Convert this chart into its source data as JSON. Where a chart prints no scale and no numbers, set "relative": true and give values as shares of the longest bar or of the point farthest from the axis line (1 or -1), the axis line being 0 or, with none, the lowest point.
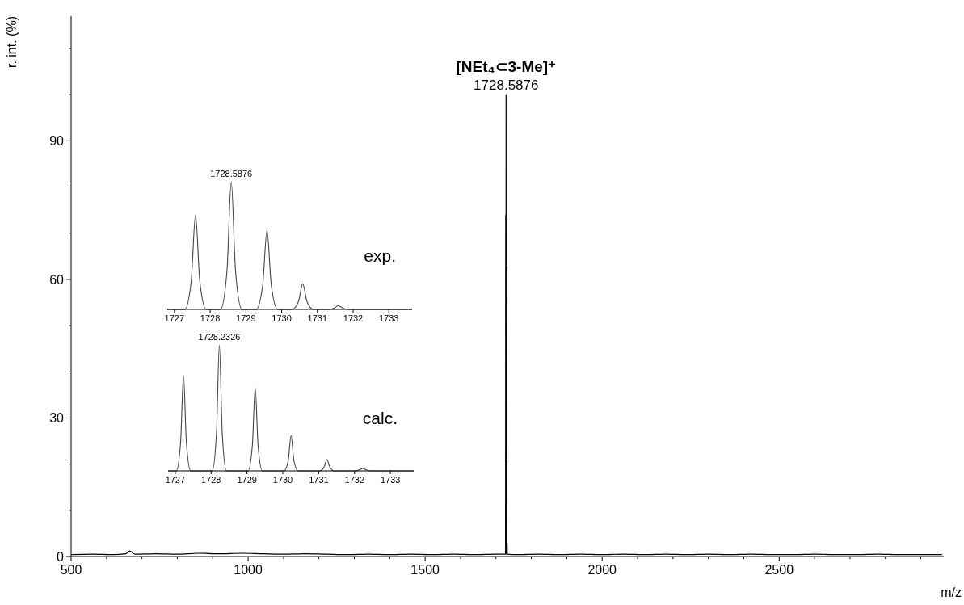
{
  "chart_data": [
    {
      "type": "line",
      "title": "[NEt₄⊂3-Me]⁺",
      "xlabel": "m/z",
      "ylabel": "r. int. (%)",
      "xlim": [
        500,
        2965
      ],
      "ylim": [
        0,
        117
      ],
      "xticks": [
        500,
        {
          "value": 600,
          "label": null
        },
        {
          "value": 700,
          "label": null
        },
        {
          "value": 800,
          "label": null
        },
        {
          "value": 900,
          "label": null
        },
        1000,
        {
          "value": 1100,
          "label": null
        },
        {
          "value": 1200,
          "label": null
        },
        {
          "value": 1300,
          "label": null
        },
        {
          "value": 1400,
          "label": null
        },
        1500,
        {
          "value": 1600,
          "label": null
        },
        {
          "value": 1700,
          "label": null
        },
        {
          "value": 1800,
          "label": null
        },
        {
          "value": 1900,
          "label": null
        },
        2000,
        {
          "value": 2100,
          "label": null
        },
        {
          "value": 2200,
          "label": null
        },
        {
          "value": 2300,
          "label": null
        },
        {
          "value": 2400,
          "label": null
        },
        2500,
        {
          "value": 2600,
          "label": null
        },
        {
          "value": 2700,
          "label": null
        },
        {
          "value": 2800,
          "label": null
        },
        {
          "value": 2900,
          "label": null
        }
      ],
      "yticks": [
        0,
        {
          "value": 10,
          "label": null
        },
        {
          "value": 20,
          "label": null
        },
        30,
        {
          "value": 40,
          "label": null
        },
        {
          "value": 50,
          "label": null
        },
        60,
        {
          "value": 70,
          "label": null
        },
        {
          "value": 80,
          "label": null
        },
        90,
        {
          "value": 100,
          "label": null
        },
        {
          "value": 110,
          "label": null
        }
      ],
      "annotations": [
        "1728.5876"
      ],
      "series": [
        {
          "color": "#000000",
          "x": [
            500,
            560,
            620,
            655,
            665,
            680,
            740,
            800,
            860,
            920,
            980,
            1040,
            1100,
            1160,
            1220,
            1280,
            1340,
            1400,
            1460,
            1520,
            1580,
            1640,
            1700,
            1727.1,
            1727.6,
            1728.1,
            1728.6,
            1729.1,
            1729.6,
            1730.1,
            1730.6,
            1731.1,
            1731.6,
            1732.1,
            1760,
            1820,
            1880,
            1940,
            2000,
            2060,
            2120,
            2180,
            2240,
            2300,
            2360,
            2420,
            2480,
            2540,
            2600,
            2660,
            2720,
            2780,
            2840,
            2900,
            2960
          ],
          "values": [
            0.4,
            0.5,
            0.4,
            0.6,
            1.2,
            0.5,
            0.6,
            0.5,
            0.7,
            0.6,
            0.7,
            0.6,
            0.5,
            0.6,
            0.5,
            0.4,
            0.5,
            0.4,
            0.5,
            0.4,
            0.5,
            0.4,
            0.5,
            0.5,
            74,
            0.5,
            100,
            0.5,
            63,
            0.5,
            21,
            0.5,
            3,
            0.5,
            0.4,
            0.5,
            0.4,
            0.5,
            0.4,
            0.5,
            0.4,
            0.5,
            0.4,
            0.5,
            0.4,
            0.5,
            0.4,
            0.4,
            0.5,
            0.4,
            0.4,
            0.5,
            0.4,
            0.4,
            0.4
          ]
        }
      ]
    },
    {
      "type": "line",
      "title": "exp.",
      "relative": true,
      "xlim": [
        1726.8,
        1733.65
      ],
      "xticks": [
        1727,
        1728,
        1729,
        1730,
        1731,
        1732,
        1733
      ],
      "annotations": [
        "1728.5876"
      ],
      "series": [
        {
          "color": "#444444",
          "x": [
            1726.8,
            1727.29,
            1727.47,
            1727.59,
            1727.71,
            1727.89,
            1728.29,
            1728.47,
            1728.59,
            1728.71,
            1728.89,
            1729.29,
            1729.47,
            1729.59,
            1729.71,
            1729.89,
            1730.29,
            1730.47,
            1730.59,
            1730.71,
            1730.89,
            1731.29,
            1731.47,
            1731.59,
            1731.71,
            1731.89,
            1733.65
          ],
          "values": [
            0,
            0,
            0.22,
            0.74,
            0.22,
            0,
            0,
            0.3,
            1,
            0.3,
            0,
            0,
            0.19,
            0.62,
            0.19,
            0,
            0,
            0.06,
            0.2,
            0.06,
            0,
            0,
            0.01,
            0.03,
            0.01,
            0,
            0
          ]
        }
      ]
    },
    {
      "type": "line",
      "title": "calc.",
      "relative": true,
      "xlim": [
        1726.8,
        1733.65
      ],
      "xticks": [
        1727,
        1728,
        1729,
        1730,
        1731,
        1732,
        1733
      ],
      "annotations": [
        "1728.2326"
      ],
      "series": [
        {
          "color": "#444444",
          "x": [
            1726.8,
            1727.03,
            1727.15,
            1727.23,
            1727.31,
            1727.43,
            1728.03,
            1728.15,
            1728.23,
            1728.31,
            1728.43,
            1729.03,
            1729.15,
            1729.23,
            1729.31,
            1729.43,
            1730.03,
            1730.15,
            1730.23,
            1730.31,
            1730.43,
            1731.03,
            1731.15,
            1731.23,
            1731.31,
            1731.43,
            1732.03,
            1732.15,
            1732.23,
            1732.31,
            1732.43,
            1733.65
          ],
          "values": [
            0,
            0,
            0.23,
            0.76,
            0.23,
            0,
            0,
            0.3,
            1,
            0.3,
            0,
            0,
            0.2,
            0.66,
            0.2,
            0,
            0,
            0.08,
            0.28,
            0.08,
            0,
            0,
            0.03,
            0.09,
            0.03,
            0,
            0,
            0.01,
            0.02,
            0.01,
            0,
            0
          ]
        }
      ]
    }
  ]
}
